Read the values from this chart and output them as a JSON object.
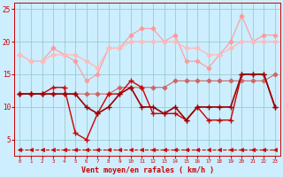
{
  "x": [
    0,
    1,
    2,
    3,
    4,
    5,
    6,
    7,
    8,
    9,
    10,
    11,
    12,
    13,
    14,
    15,
    16,
    17,
    18,
    19,
    20,
    21,
    22,
    23
  ],
  "line_pink1": [
    18,
    17,
    17,
    19,
    18,
    17,
    14,
    15,
    19,
    19,
    21,
    22,
    22,
    20,
    21,
    17,
    17,
    16,
    18,
    20,
    24,
    20,
    21,
    21
  ],
  "line_pink2": [
    18,
    17,
    17,
    18,
    18,
    18,
    17,
    16,
    19,
    19,
    20,
    20,
    20,
    20,
    20,
    19,
    19,
    18,
    18,
    19,
    20,
    20,
    20,
    20
  ],
  "line_slope_up": [
    12,
    12,
    12,
    12,
    12,
    12,
    12,
    12,
    12,
    13,
    13,
    13,
    13,
    13,
    14,
    14,
    14,
    14,
    14,
    14,
    14,
    14,
    14,
    15
  ],
  "line_dark1": [
    12,
    12,
    12,
    13,
    13,
    6,
    5,
    9,
    12,
    12,
    14,
    13,
    9,
    9,
    9,
    8,
    10,
    8,
    8,
    8,
    15,
    15,
    15,
    10
  ],
  "line_dark2": [
    12,
    12,
    12,
    12,
    12,
    12,
    10,
    9,
    10,
    12,
    13,
    10,
    10,
    9,
    10,
    8,
    10,
    10,
    10,
    10,
    15,
    15,
    15,
    10
  ],
  "dashed_y": [
    3.5,
    3.5,
    3.5,
    3.5,
    3.5,
    3.5,
    3.5,
    3.5,
    3.5,
    3.5,
    3.5,
    3.5,
    3.5,
    3.5,
    3.5,
    3.5,
    3.5,
    3.5,
    3.5,
    3.5,
    3.5,
    3.5,
    3.5,
    3.5
  ],
  "bg_color": "#cceeff",
  "grid_color": "#99cccc",
  "color_light1": "#ff9999",
  "color_light2": "#ffbbbb",
  "color_slope": "#cc6666",
  "color_dark": "#cc0000",
  "color_dark2": "#990000",
  "color_dashed": "#cc0000",
  "xlabel": "Vent moyen/en rafales ( km/h )",
  "xlim": [
    -0.5,
    23.5
  ],
  "ylim": [
    2.5,
    26
  ],
  "yticks": [
    5,
    10,
    15,
    20,
    25
  ],
  "xticks": [
    0,
    1,
    2,
    3,
    4,
    5,
    6,
    7,
    8,
    9,
    10,
    11,
    12,
    13,
    14,
    15,
    16,
    17,
    18,
    19,
    20,
    21,
    22,
    23
  ]
}
